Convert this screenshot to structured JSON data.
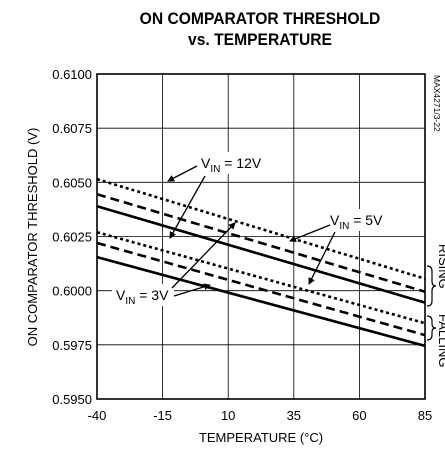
{
  "chart_data": {
    "type": "line",
    "title_line1": "ON COMPARATOR THRESHOLD",
    "title_line2": "vs. TEMPERATURE",
    "xlabel": "TEMPERATURE (°C)",
    "ylabel": "ON COMPARATOR THRESHOLD (V)",
    "xlim": [
      -40,
      85
    ],
    "ylim": [
      0.595,
      0.61
    ],
    "xticks": [
      "-40",
      "-15",
      "10",
      "35",
      "60",
      "85"
    ],
    "yticks": [
      "0.6100",
      "0.6075",
      "0.6050",
      "0.6025",
      "0.6000",
      "0.5975",
      "0.5950"
    ],
    "grid": true,
    "watermark": "MAX4271/3-22",
    "annotations": {
      "vin12": "V",
      "vin12_sub": "IN",
      "vin12_val": " = 12V",
      "vin5": "V",
      "vin5_sub": "IN",
      "vin5_val": " = 5V",
      "vin3": "V",
      "vin3_sub": "IN",
      "vin3_val": " = 3V"
    },
    "bracket_labels": [
      "RISING",
      "FALLING"
    ],
    "series": [
      {
        "name": "V_IN = 12V rising",
        "style": "dotted",
        "x": [
          -40,
          85
        ],
        "y": [
          0.60515,
          0.60055
        ]
      },
      {
        "name": "V_IN = 5V rising",
        "style": "dashed",
        "x": [
          -40,
          85
        ],
        "y": [
          0.60445,
          0.59995
        ]
      },
      {
        "name": "V_IN = 3V rising",
        "style": "solid",
        "x": [
          -40,
          85
        ],
        "y": [
          0.6039,
          0.59945
        ]
      },
      {
        "name": "V_IN = 12V falling",
        "style": "dotted",
        "x": [
          -40,
          85
        ],
        "y": [
          0.6027,
          0.5985
        ]
      },
      {
        "name": "V_IN = 5V falling",
        "style": "dashed",
        "x": [
          -40,
          85
        ],
        "y": [
          0.6022,
          0.59795
        ]
      },
      {
        "name": "V_IN = 3V falling",
        "style": "solid",
        "x": [
          -40,
          85
        ],
        "y": [
          0.60155,
          0.59745
        ]
      }
    ]
  }
}
